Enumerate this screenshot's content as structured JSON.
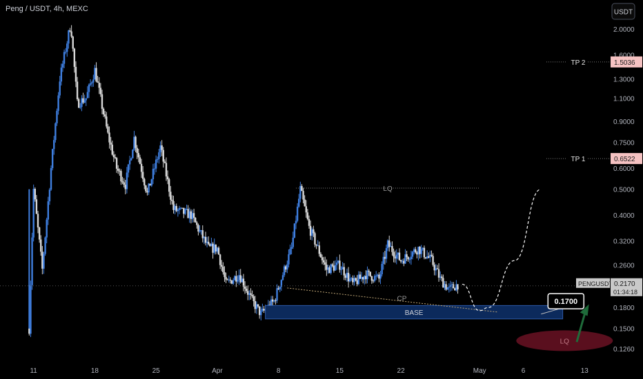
{
  "header": {
    "symbol_title": "Peng / USDT, 4h, MEXC"
  },
  "currency_button": {
    "label": "USDT"
  },
  "last_price_tag": {
    "symbol": "PENGUSDT",
    "price": "0.2170",
    "countdown": "01:34:18"
  },
  "chart_data": {
    "type": "candlestick",
    "title": "Peng / USDT, 4h, MEXC",
    "price_scale": "log",
    "ylim": [
      0.115,
      2.4
    ],
    "y_ticks": [
      "2.0000",
      "1.6000",
      "1.3000",
      "1.1000",
      "0.9000",
      "0.7500",
      "0.6000",
      "0.5000",
      "0.4000",
      "0.3200",
      "0.2600",
      "0.2170",
      "0.1800",
      "0.1500",
      "0.1260"
    ],
    "x_ticks": [
      "11",
      "18",
      "25",
      "Apr",
      "8",
      "15",
      "22",
      "May",
      "6",
      "13"
    ],
    "x_range": [
      "2024-03-10",
      "2024-05-14"
    ],
    "price_path_trend": [
      [
        "2024-03-10T12:00",
        0.15
      ],
      [
        "2024-03-11T00:00",
        0.5
      ],
      [
        "2024-03-12T00:00",
        0.25
      ],
      [
        "2024-03-13T00:00",
        0.6
      ],
      [
        "2024-03-14T00:00",
        1.3
      ],
      [
        "2024-03-15T06:00",
        2.1
      ],
      [
        "2024-03-16T00:00",
        1.05
      ],
      [
        "2024-03-17T00:00",
        1.1
      ],
      [
        "2024-03-18T00:00",
        1.4
      ],
      [
        "2024-03-19T12:00",
        0.8
      ],
      [
        "2024-03-20T12:00",
        0.6
      ],
      [
        "2024-03-21T12:00",
        0.52
      ],
      [
        "2024-03-22T12:00",
        0.78
      ],
      [
        "2024-03-24T00:00",
        0.48
      ],
      [
        "2024-03-25T12:00",
        0.72
      ],
      [
        "2024-03-27T00:00",
        0.42
      ],
      [
        "2024-03-29T00:00",
        0.4
      ],
      [
        "2024-03-31T00:00",
        0.3
      ],
      [
        "2024-04-01T00:00",
        0.3
      ],
      [
        "2024-04-02T00:00",
        0.22
      ],
      [
        "2024-04-03T12:00",
        0.24
      ],
      [
        "2024-04-05T00:00",
        0.19
      ],
      [
        "2024-04-06T00:00",
        0.17
      ],
      [
        "2024-04-07T12:00",
        0.19
      ],
      [
        "2024-04-08T12:00",
        0.24
      ],
      [
        "2024-04-09T12:00",
        0.3
      ],
      [
        "2024-04-10T12:00",
        0.5
      ],
      [
        "2024-04-11T12:00",
        0.36
      ],
      [
        "2024-04-12T12:00",
        0.3
      ],
      [
        "2024-04-13T12:00",
        0.25
      ],
      [
        "2024-04-15T00:00",
        0.26
      ],
      [
        "2024-04-16T12:00",
        0.22
      ],
      [
        "2024-04-18T00:00",
        0.24
      ],
      [
        "2024-04-19T12:00",
        0.23
      ],
      [
        "2024-04-20T12:00",
        0.31
      ],
      [
        "2024-04-22T00:00",
        0.27
      ],
      [
        "2024-04-24T00:00",
        0.3
      ],
      [
        "2024-04-25T12:00",
        0.27
      ],
      [
        "2024-04-26T12:00",
        0.23
      ],
      [
        "2024-04-27T12:00",
        0.21
      ],
      [
        "2024-04-28T12:00",
        0.22
      ]
    ],
    "projection_path": [
      [
        "2024-04-29T00:00",
        0.22
      ],
      [
        "2024-05-01T00:00",
        0.175
      ],
      [
        "2024-05-02T00:00",
        0.18
      ],
      [
        "2024-05-05T00:00",
        0.27
      ],
      [
        "2024-05-08T00:00",
        0.5
      ]
    ],
    "levels": [
      {
        "label": "TP 2",
        "value": 1.5036,
        "value_text": "1.5036"
      },
      {
        "label": "TP 1",
        "value": 0.6522,
        "value_text": "0.6522"
      }
    ],
    "last_price": 0.217,
    "annotations": [
      {
        "label": "LQ",
        "kind": "horizontal-line",
        "value": 0.505,
        "from": "2024-04-10",
        "to": "2024-05-01"
      },
      {
        "label": "CP",
        "kind": "trendline",
        "from": [
          "2024-04-09",
          0.213
        ],
        "to": [
          "2024-05-03",
          0.173
        ]
      },
      {
        "label": "BASE",
        "kind": "zone",
        "from": "2024-04-06T12:00",
        "to": "2024-05-10T12:00",
        "ylim": [
          0.163,
          0.183
        ]
      },
      {
        "label": "0.1700",
        "kind": "price-callout",
        "value": 0.17,
        "at": "2024-05-08T12:00"
      },
      {
        "label": "LQ",
        "kind": "ellipse",
        "center": [
          "2024-05-08T12:00",
          0.135
        ]
      },
      {
        "label": "",
        "kind": "arrow-up",
        "from": [
          "2024-05-11T00:00",
          0.14
        ],
        "to": [
          "2024-05-12T00:00",
          0.185
        ]
      }
    ],
    "grid": false,
    "colors": {
      "background": "#000000",
      "up_candle": "#3f7fe0",
      "down_candle": "#d9d9d9",
      "zone": "#0c2a5c",
      "ellipse": "#5a0f1e",
      "arrow": "#1f6b3a",
      "level_tag": "#f5c2c2"
    }
  }
}
